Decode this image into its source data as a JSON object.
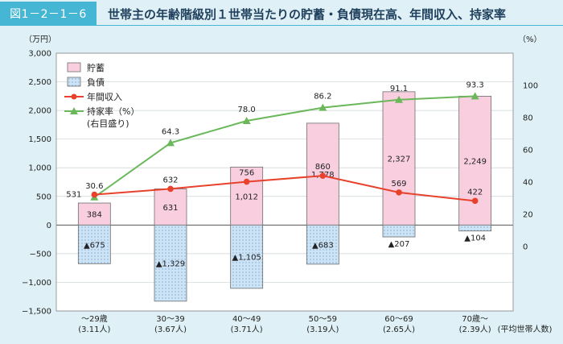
{
  "figure": {
    "label": "図1－2－1－6",
    "title": "世帯主の年齢階級別１世帯当たりの貯蓄・負債現在高、年間収入、持家率"
  },
  "colors": {
    "savings": "#f9cfe0",
    "debt": "#cde3f6",
    "income": "#e8412c",
    "ownership": "#6ab85a",
    "background": "#dff1f6"
  },
  "chart_data": {
    "type": "bar",
    "left_unit": "（万円）",
    "right_unit": "（%）",
    "left_ticks": [
      "3,000",
      "2,500",
      "2,000",
      "1,500",
      "1,000",
      "500",
      "0",
      "−500",
      "−1,000",
      "−1,500"
    ],
    "right_ticks": [
      "100",
      "80",
      "60",
      "40",
      "20",
      "0"
    ],
    "ylim_left": [
      -1500,
      3000
    ],
    "ylim_right": [
      -40,
      120
    ],
    "categories": [
      {
        "label": "～29歳",
        "sub": "(3.11人)"
      },
      {
        "label": "30～39",
        "sub": "(3.67人)"
      },
      {
        "label": "40～49",
        "sub": "(3.71人)"
      },
      {
        "label": "50～59",
        "sub": "(3.19人)"
      },
      {
        "label": "60～69",
        "sub": "(2.65人)"
      },
      {
        "label": "70歳～",
        "sub": "(2.39人)"
      }
    ],
    "household_note": "(平均世帯人数)",
    "series": [
      {
        "name": "貯蓄",
        "kind": "bar",
        "values": [
          384,
          631,
          1012,
          1778,
          2327,
          2249
        ],
        "labels": [
          "384",
          "631",
          "1,012",
          "1,778",
          "2,327",
          "2,249"
        ]
      },
      {
        "name": "負債",
        "kind": "bar",
        "values": [
          -675,
          -1329,
          -1105,
          -683,
          -207,
          -104
        ],
        "labels": [
          "▲675",
          "▲1,329",
          "▲1,105",
          "▲683",
          "▲207",
          "▲104"
        ]
      },
      {
        "name": "年間収入",
        "kind": "line",
        "axis": "left",
        "values": [
          531,
          632,
          756,
          860,
          569,
          422
        ],
        "labels": [
          "531",
          "632",
          "756",
          "860",
          "569",
          "422"
        ]
      },
      {
        "name": "持家率（%）",
        "name2": "(右目盛り)",
        "kind": "line",
        "axis": "right",
        "values": [
          30.6,
          64.3,
          78.0,
          86.2,
          91.1,
          93.3
        ],
        "labels": [
          "30.6",
          "64.3",
          "78.0",
          "86.2",
          "91.1",
          "93.3"
        ]
      }
    ]
  }
}
